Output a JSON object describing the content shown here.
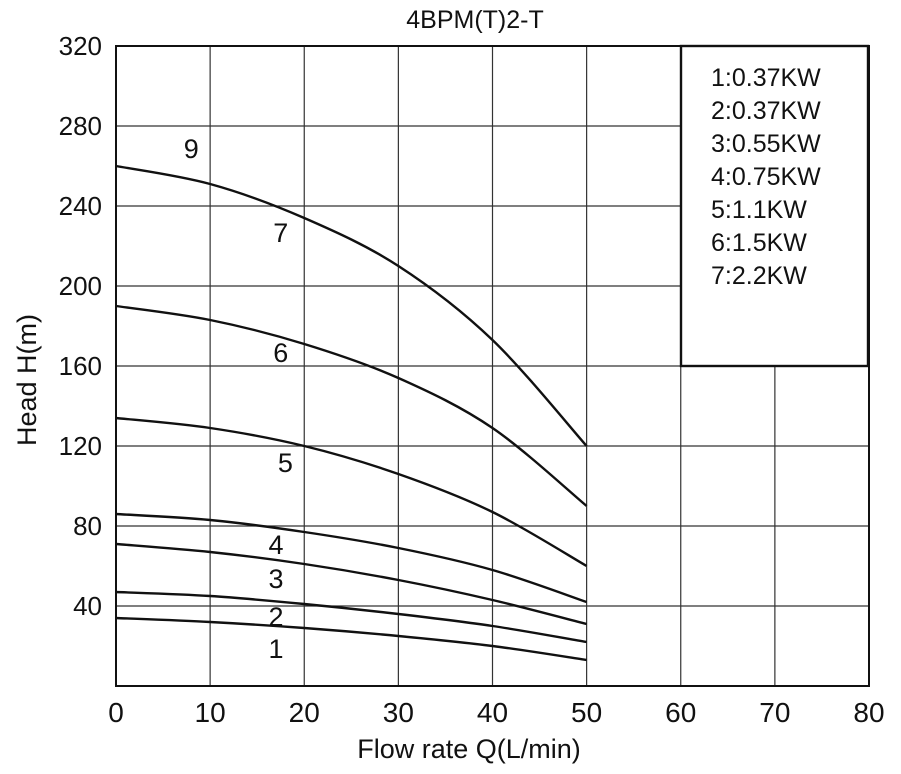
{
  "chart_data": {
    "type": "line",
    "title": "4BPM(T)2-T",
    "xlabel": "Flow rate Q(L/min)",
    "ylabel": "Head H(m)",
    "xlim": [
      0,
      80
    ],
    "ylim": [
      0,
      320
    ],
    "x_ticks": [
      "0",
      "10",
      "20",
      "30",
      "40",
      "50",
      "60",
      "70",
      "80"
    ],
    "y_ticks": [
      "40",
      "80",
      "120",
      "160",
      "200",
      "240",
      "280",
      "320"
    ],
    "grid": true,
    "legend_position": "top-right",
    "legend": [
      "1:0.37KW",
      "2:0.37KW",
      "3:0.55KW",
      "4:0.75KW",
      "5:1.1KW",
      "6:1.5KW",
      "7:2.2KW"
    ],
    "series": [
      {
        "name": "1",
        "x": [
          0,
          10,
          20,
          30,
          40,
          50
        ],
        "values": [
          34,
          32,
          29,
          25,
          20,
          13
        ],
        "label_at": [
          17,
          19
        ]
      },
      {
        "name": "2",
        "x": [
          0,
          10,
          20,
          30,
          40,
          50
        ],
        "values": [
          47,
          45,
          41,
          36,
          30,
          22
        ],
        "label_at": [
          17,
          35
        ]
      },
      {
        "name": "3",
        "x": [
          0,
          10,
          20,
          30,
          40,
          50
        ],
        "values": [
          71,
          67,
          61,
          53,
          43,
          31
        ],
        "label_at": [
          17,
          54
        ]
      },
      {
        "name": "4",
        "x": [
          0,
          10,
          20,
          30,
          40,
          50
        ],
        "values": [
          86,
          83,
          77,
          69,
          58,
          42
        ],
        "label_at": [
          17,
          71
        ]
      },
      {
        "name": "5",
        "x": [
          0,
          10,
          20,
          30,
          40,
          50
        ],
        "values": [
          134,
          129,
          120,
          106,
          87,
          60
        ],
        "label_at": [
          18,
          112
        ]
      },
      {
        "name": "6",
        "x": [
          0,
          10,
          20,
          30,
          40,
          50
        ],
        "values": [
          190,
          183,
          171,
          154,
          129,
          90
        ],
        "label_at": [
          17.5,
          167
        ]
      },
      {
        "name": "7",
        "x": [
          0,
          10,
          20,
          30,
          40,
          50
        ],
        "values": [
          260,
          251,
          234,
          210,
          173,
          120
        ],
        "label_at": [
          17.5,
          227
        ]
      }
    ],
    "annotations": [
      {
        "text": "9",
        "x": 8,
        "y": 269
      }
    ]
  }
}
